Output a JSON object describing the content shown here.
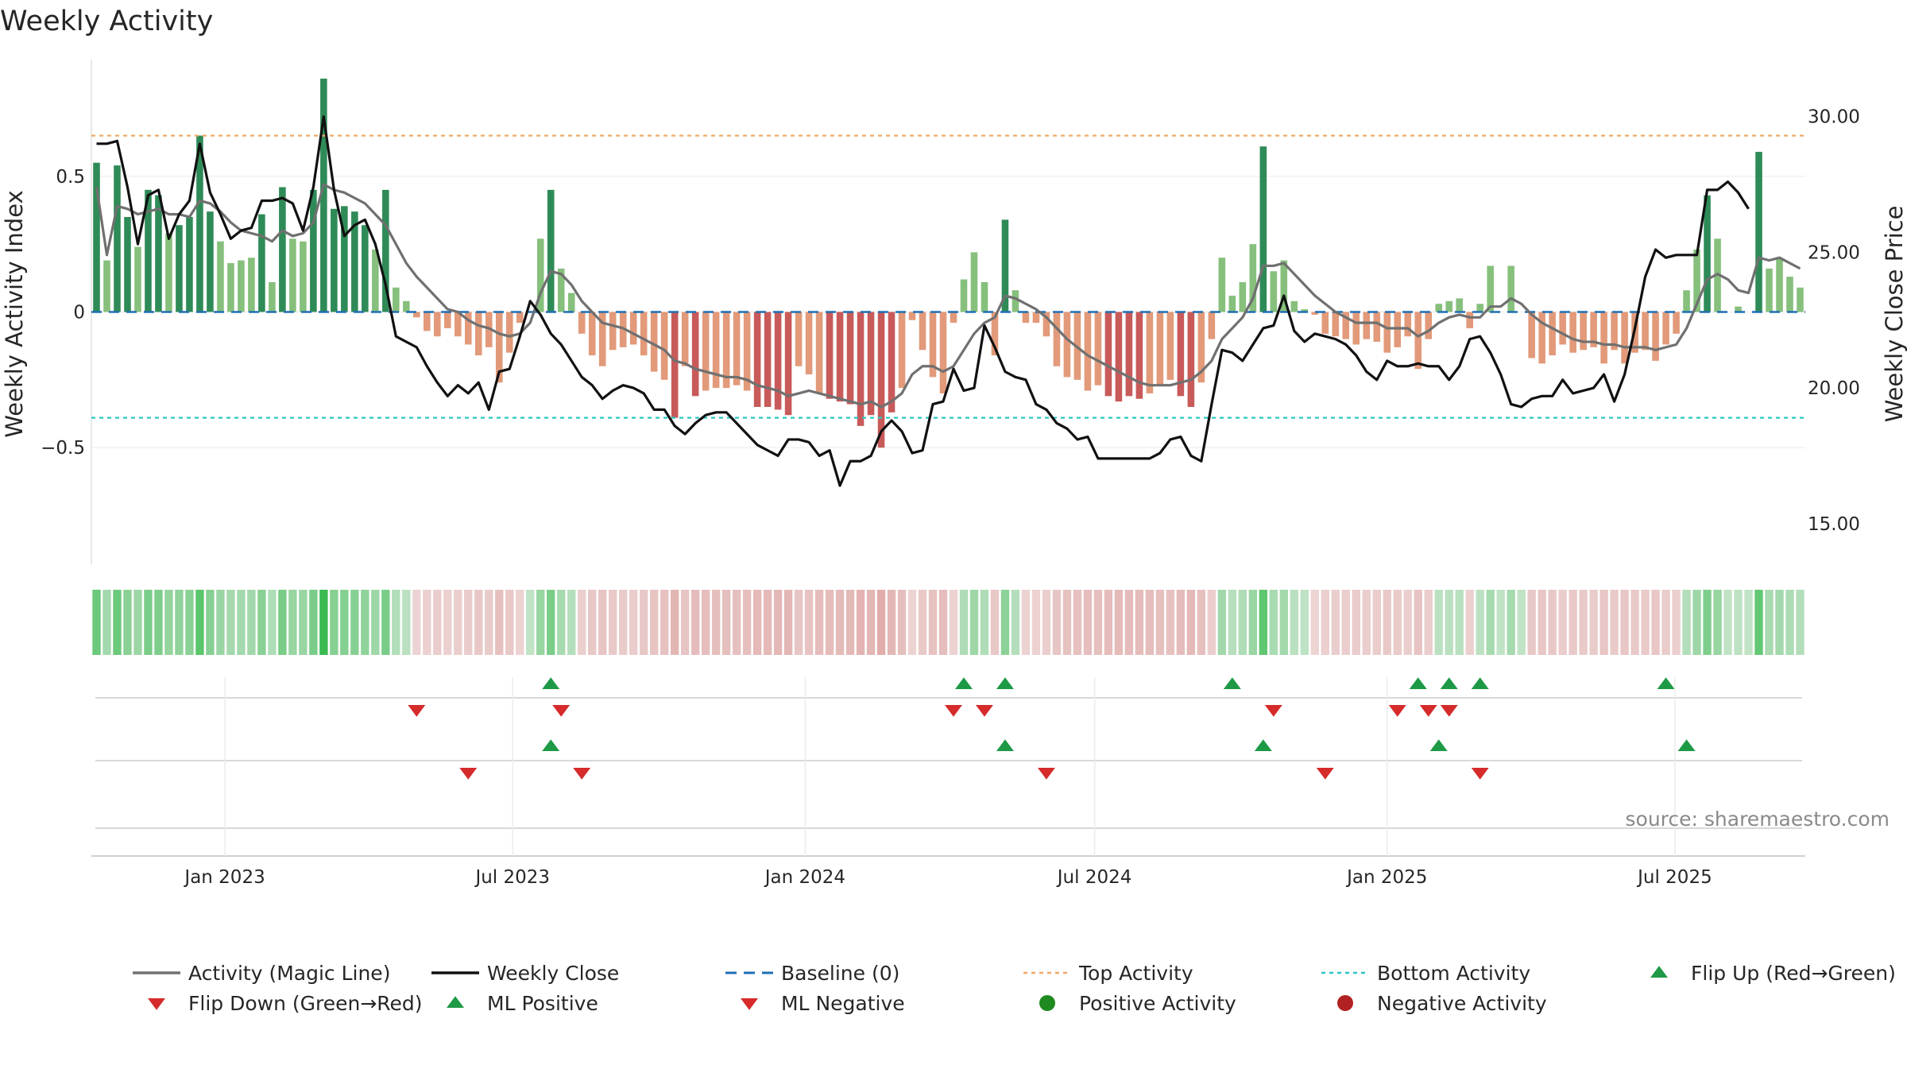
{
  "chart_data": {
    "type": "bar",
    "title": "Weekly Activity",
    "ylabel_left": "Weekly Activity Index",
    "ylabel_right": "Weekly Close Price",
    "source": "source: sharemaestro.com",
    "x_range": [
      "2022-10-09",
      "2025-09-21"
    ],
    "x_ticks": [
      {
        "date": "2023-01-01",
        "label": "Jan 2023"
      },
      {
        "date": "2023-07-01",
        "label": "Jul 2023"
      },
      {
        "date": "2024-01-01",
        "label": "Jan 2024"
      },
      {
        "date": "2024-07-01",
        "label": "Jul 2024"
      },
      {
        "date": "2025-01-01",
        "label": "Jan 2025"
      },
      {
        "date": "2025-07-01",
        "label": "Jul 2025"
      }
    ],
    "left_axis": {
      "ylim": [
        -0.93,
        0.93
      ],
      "ticks": [
        {
          "v": 0.5,
          "label": "0.5"
        },
        {
          "v": 0,
          "label": "0"
        },
        {
          "v": -0.5,
          "label": "−0.5"
        }
      ]
    },
    "right_axis": {
      "ylim": [
        13.5,
        32.1
      ],
      "ticks": [
        {
          "v": 30,
          "label": "30.00"
        },
        {
          "v": 25,
          "label": "25.00"
        },
        {
          "v": 20,
          "label": "20.00"
        },
        {
          "v": 15,
          "label": "15.00"
        }
      ]
    },
    "top_activity": 0.65,
    "bottom_activity": -0.39,
    "colors": {
      "pos_strong": "#2e8b57",
      "pos_light": "#86c07c",
      "neg_strong": "#c85a5a",
      "neg_light": "#e29a7a",
      "magic_line": "#707070",
      "close": "#111111",
      "baseline": "#1f6fb4",
      "top": "#f0a868",
      "bottom": "#2cc6c6",
      "flip_up": "#1e9a46",
      "flip_down": "#d52b2b",
      "pos_activity": "#1f8a1f",
      "neg_activity": "#b22222"
    },
    "series": [
      {
        "name": "Weekly Activity",
        "values": [
          0.55,
          0.19,
          0.54,
          0.35,
          0.24,
          0.45,
          0.43,
          0.29,
          0.32,
          0.35,
          0.65,
          0.37,
          0.26,
          0.18,
          0.19,
          0.2,
          0.36,
          0.11,
          0.46,
          0.27,
          0.26,
          0.45,
          0.86,
          0.38,
          0.39,
          0.37,
          0.32,
          0.23,
          0.45,
          0.09,
          0.04,
          -0.02,
          -0.07,
          -0.09,
          -0.06,
          -0.09,
          -0.12,
          -0.16,
          -0.13,
          -0.26,
          -0.15,
          -0.04,
          0.0,
          0.27,
          0.45,
          0.16,
          0.07,
          -0.08,
          -0.16,
          -0.2,
          -0.14,
          -0.13,
          -0.12,
          -0.16,
          -0.22,
          -0.25,
          -0.39,
          -0.2,
          -0.31,
          -0.29,
          -0.28,
          -0.28,
          -0.27,
          -0.29,
          -0.35,
          -0.35,
          -0.36,
          -0.38,
          -0.2,
          -0.23,
          -0.3,
          -0.32,
          -0.33,
          -0.34,
          -0.42,
          -0.38,
          -0.5,
          -0.37,
          -0.28,
          -0.03,
          -0.14,
          -0.24,
          -0.3,
          -0.04,
          0.12,
          0.22,
          0.11,
          -0.16,
          0.34,
          0.08,
          -0.04,
          -0.04,
          -0.09,
          -0.2,
          -0.24,
          -0.25,
          -0.29,
          -0.27,
          -0.31,
          -0.33,
          -0.31,
          -0.32,
          -0.3,
          -0.27,
          -0.25,
          -0.31,
          -0.35,
          -0.26,
          -0.1,
          0.2,
          0.06,
          0.11,
          0.25,
          0.61,
          0.15,
          0.19,
          0.04,
          0.01,
          -0.01,
          -0.08,
          -0.09,
          -0.1,
          -0.12,
          -0.1,
          -0.11,
          -0.15,
          -0.13,
          -0.09,
          -0.21,
          -0.1,
          0.03,
          0.04,
          0.05,
          -0.06,
          0.03,
          0.17,
          0.0,
          0.17,
          0.0,
          -0.17,
          -0.19,
          -0.16,
          -0.12,
          -0.15,
          -0.14,
          -0.13,
          -0.19,
          -0.14,
          -0.19,
          -0.15,
          -0.14,
          -0.18,
          -0.12,
          -0.08,
          0.08,
          0.23,
          0.43,
          0.27,
          0.0,
          0.02,
          0.0,
          0.59,
          0.16,
          0.2,
          0.13,
          0.09
        ]
      },
      {
        "name": "Activity (Magic Line)",
        "values": [
          0.46,
          0.21,
          0.39,
          0.38,
          0.36,
          0.37,
          0.38,
          0.36,
          0.36,
          0.35,
          0.41,
          0.4,
          0.37,
          0.33,
          0.3,
          0.29,
          0.28,
          0.26,
          0.3,
          0.28,
          0.29,
          0.33,
          0.47,
          0.45,
          0.44,
          0.42,
          0.4,
          0.36,
          0.32,
          0.25,
          0.18,
          0.13,
          0.09,
          0.05,
          0.01,
          0.0,
          -0.03,
          -0.05,
          -0.06,
          -0.08,
          -0.09,
          -0.08,
          -0.04,
          0.07,
          0.15,
          0.14,
          0.1,
          0.04,
          0.0,
          -0.04,
          -0.05,
          -0.06,
          -0.08,
          -0.1,
          -0.12,
          -0.14,
          -0.18,
          -0.19,
          -0.21,
          -0.22,
          -0.23,
          -0.24,
          -0.24,
          -0.25,
          -0.27,
          -0.28,
          -0.29,
          -0.31,
          -0.3,
          -0.29,
          -0.3,
          -0.31,
          -0.32,
          -0.33,
          -0.34,
          -0.33,
          -0.35,
          -0.33,
          -0.3,
          -0.23,
          -0.2,
          -0.2,
          -0.22,
          -0.2,
          -0.14,
          -0.08,
          -0.04,
          -0.02,
          0.06,
          0.05,
          0.03,
          0.01,
          -0.02,
          -0.06,
          -0.1,
          -0.13,
          -0.16,
          -0.18,
          -0.2,
          -0.22,
          -0.24,
          -0.26,
          -0.27,
          -0.27,
          -0.27,
          -0.26,
          -0.25,
          -0.22,
          -0.18,
          -0.1,
          -0.06,
          -0.02,
          0.05,
          0.17,
          0.17,
          0.18,
          0.14,
          0.1,
          0.06,
          0.03,
          0.0,
          -0.02,
          -0.04,
          -0.04,
          -0.04,
          -0.06,
          -0.06,
          -0.06,
          -0.09,
          -0.07,
          -0.04,
          -0.02,
          -0.01,
          -0.02,
          -0.02,
          0.02,
          0.02,
          0.05,
          0.03,
          -0.01,
          -0.04,
          -0.06,
          -0.08,
          -0.1,
          -0.11,
          -0.11,
          -0.12,
          -0.12,
          -0.13,
          -0.13,
          -0.13,
          -0.14,
          -0.13,
          -0.12,
          -0.06,
          0.03,
          0.12,
          0.14,
          0.12,
          0.08,
          0.07,
          0.2,
          0.19,
          0.2,
          0.18,
          0.16
        ]
      },
      {
        "name": "Weekly Close",
        "values": [
          29.0,
          29.0,
          29.1,
          27.4,
          25.3,
          27.1,
          27.3,
          25.5,
          26.4,
          26.9,
          29.0,
          27.2,
          26.4,
          25.5,
          25.8,
          25.9,
          26.9,
          26.9,
          27.0,
          26.8,
          25.8,
          27.4,
          30.0,
          27.3,
          25.6,
          26.0,
          26.2,
          25.3,
          23.8,
          21.9,
          21.7,
          21.5,
          20.8,
          20.2,
          19.7,
          20.1,
          19.8,
          20.2,
          19.2,
          20.6,
          20.7,
          21.9,
          23.2,
          22.7,
          22.0,
          21.6,
          21.0,
          20.4,
          20.1,
          19.6,
          19.9,
          20.1,
          20.0,
          19.8,
          19.2,
          19.2,
          18.6,
          18.3,
          18.7,
          19.0,
          19.1,
          19.1,
          18.7,
          18.3,
          17.9,
          17.7,
          17.5,
          18.1,
          18.1,
          18.0,
          17.5,
          17.7,
          16.4,
          17.3,
          17.3,
          17.5,
          18.4,
          18.8,
          18.4,
          17.6,
          17.7,
          19.4,
          19.5,
          20.7,
          19.9,
          20.0,
          22.3,
          21.5,
          20.6,
          20.4,
          20.3,
          19.4,
          19.2,
          18.7,
          18.5,
          18.1,
          18.2,
          17.4,
          17.4,
          17.4,
          17.4,
          17.4,
          17.4,
          17.6,
          18.1,
          18.2,
          17.5,
          17.3,
          19.4,
          21.4,
          21.3,
          21.0,
          21.6,
          22.2,
          22.3,
          23.4,
          22.1,
          21.7,
          22.0,
          21.9,
          21.8,
          21.6,
          21.2,
          20.6,
          20.3,
          21.0,
          20.8,
          20.8,
          20.9,
          20.8,
          20.8,
          20.3,
          20.8,
          21.8,
          21.9,
          21.3,
          20.5,
          19.4,
          19.3,
          19.6,
          19.7,
          19.7,
          20.3,
          19.8,
          19.9,
          20.0,
          20.5,
          19.5,
          20.5,
          22.2,
          24.1,
          25.1,
          24.8,
          24.9,
          24.9,
          24.9,
          27.3,
          27.3,
          27.6,
          27.2,
          26.6
        ]
      }
    ],
    "signals": {
      "flip_up": [
        44,
        84,
        88,
        110,
        128,
        131,
        134,
        152
      ],
      "flip_down": [
        31,
        45,
        83,
        86,
        114,
        126,
        129,
        131
      ],
      "ml_positive": [
        44,
        88,
        113,
        130,
        154
      ],
      "ml_negative": [
        36,
        47,
        92,
        119,
        134
      ]
    },
    "legend": [
      {
        "label": "Activity (Magic Line)",
        "kind": "line-gray"
      },
      {
        "label": "Weekly Close",
        "kind": "line-black"
      },
      {
        "label": "Baseline (0)",
        "kind": "dash-blue"
      },
      {
        "label": "Top Activity",
        "kind": "dot-orange"
      },
      {
        "label": "Bottom Activity",
        "kind": "dot-cyan"
      },
      {
        "label": "Flip Up (Red→Green)",
        "kind": "tri-up"
      },
      {
        "label": "Flip Down (Green→Red)",
        "kind": "tri-down"
      },
      {
        "label": "ML Positive",
        "kind": "tri-up"
      },
      {
        "label": "ML Negative",
        "kind": "tri-down"
      },
      {
        "label": "Positive Activity",
        "kind": "circle-green"
      },
      {
        "label": "Negative Activity",
        "kind": "circle-red"
      }
    ]
  }
}
